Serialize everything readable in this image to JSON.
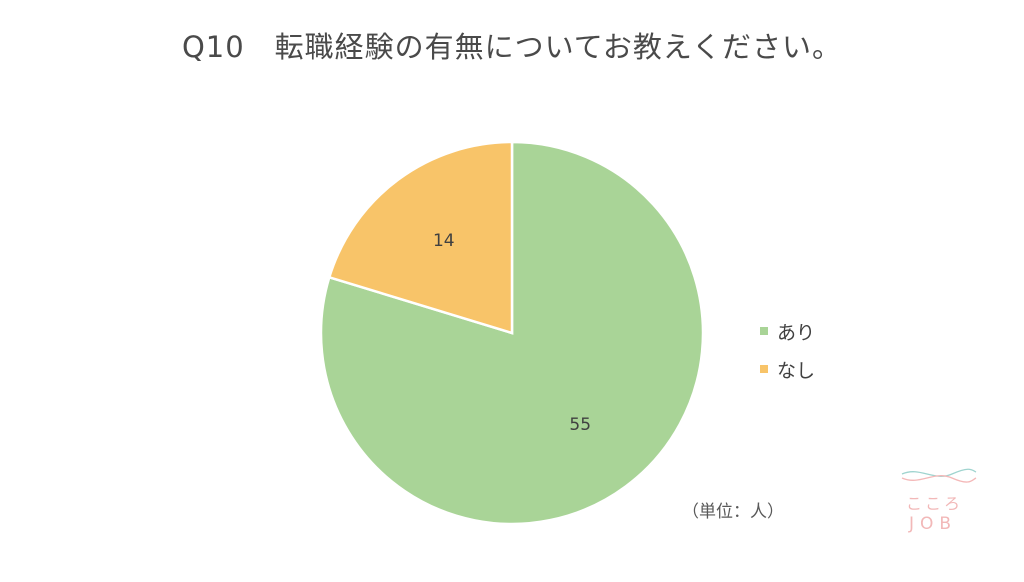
{
  "chart_data": {
    "type": "pie",
    "title": "Q10　転職経験の有無についてお教えください。",
    "categories": [
      "あり",
      "なし"
    ],
    "values": [
      55,
      14
    ],
    "colors": [
      "#a9d497",
      "#f8c469"
    ],
    "data_labels": [
      "55",
      "14"
    ],
    "legend_position": "right",
    "start_angle_deg": 0,
    "direction": "clockwise"
  },
  "unit_note": "（単位：人）",
  "logo": {
    "jp": "こころ",
    "en": "JOB"
  }
}
